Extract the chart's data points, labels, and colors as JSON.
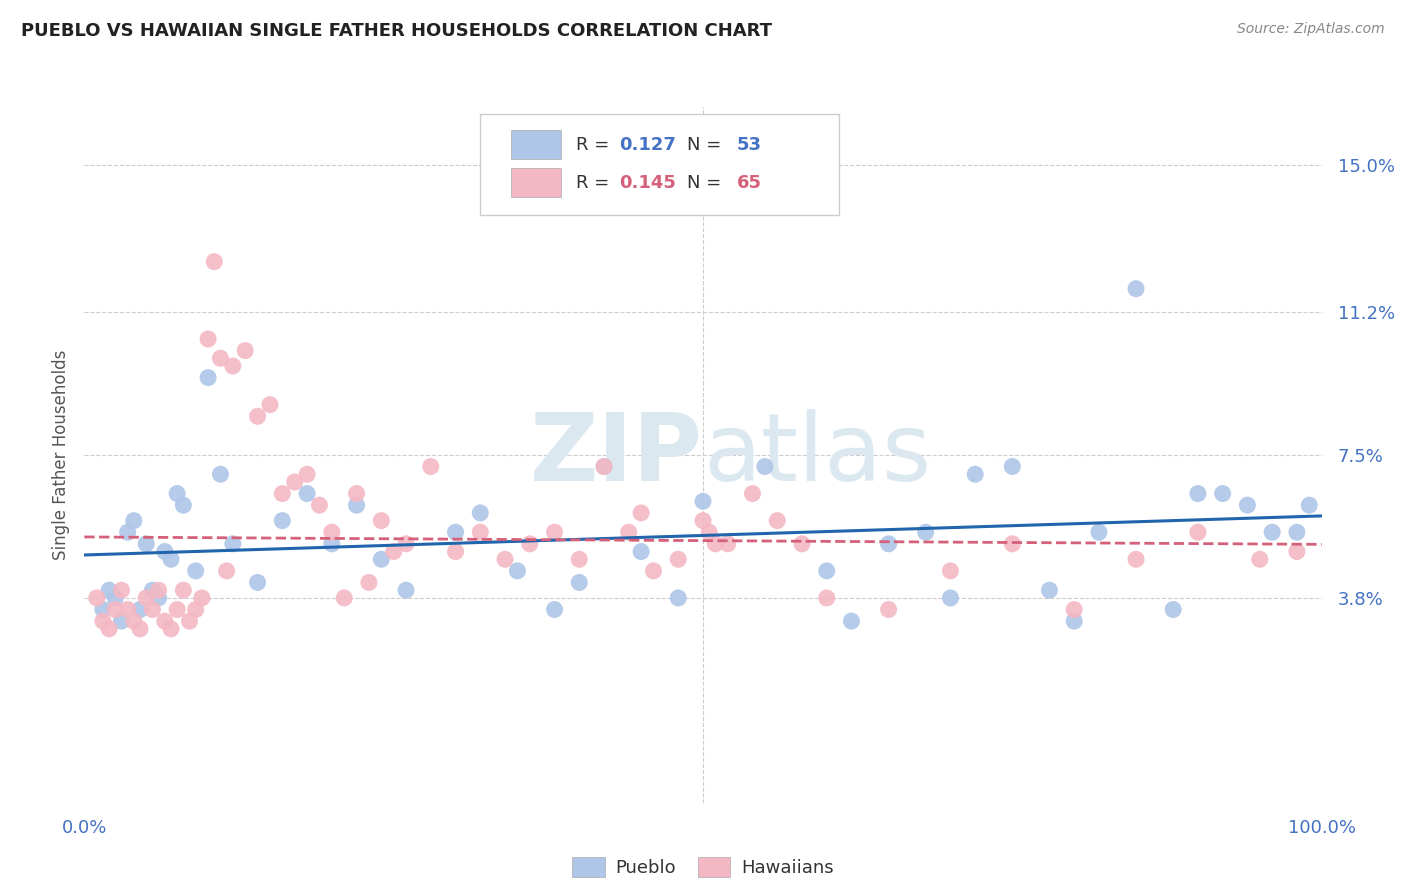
{
  "title": "PUEBLO VS HAWAIIAN SINGLE FATHER HOUSEHOLDS CORRELATION CHART",
  "source": "Source: ZipAtlas.com",
  "ylabel": "Single Father Households",
  "ytick_values": [
    3.8,
    7.5,
    11.2,
    15.0
  ],
  "ytick_labels": [
    "3.8%",
    "7.5%",
    "11.2%",
    "15.0%"
  ],
  "xlim": [
    0,
    100
  ],
  "ylim_min": -1.5,
  "ylim_max": 16.5,
  "legend_pueblo_R": "0.127",
  "legend_pueblo_N": "53",
  "legend_hawaiian_R": "0.145",
  "legend_hawaiian_N": "65",
  "pueblo_color": "#aec6e8",
  "hawaiian_color": "#f4b8c4",
  "pueblo_line_color": "#2166ac",
  "hawaiian_line_color": "#d4607a",
  "blue_text_color": "#4472c4",
  "pink_text_color": "#d4607a",
  "title_color": "#222222",
  "axis_tick_color": "#4472c4",
  "source_color": "#888888",
  "watermark_color": "#dce8f0",
  "pueblo_x": [
    1.5,
    2.0,
    2.5,
    3.0,
    3.5,
    4.0,
    4.5,
    5.0,
    5.5,
    6.0,
    6.5,
    7.0,
    7.5,
    8.0,
    9.0,
    10.0,
    11.0,
    12.0,
    14.0,
    16.0,
    18.0,
    20.0,
    22.0,
    24.0,
    26.0,
    30.0,
    32.0,
    35.0,
    38.0,
    40.0,
    42.0,
    45.0,
    50.0,
    60.0,
    62.0,
    65.0,
    70.0,
    75.0,
    78.0,
    80.0,
    82.0,
    85.0,
    88.0,
    90.0,
    92.0,
    94.0,
    96.0,
    98.0,
    99.0,
    68.0,
    72.0,
    55.0,
    48.0
  ],
  "pueblo_y": [
    3.5,
    4.0,
    3.8,
    3.2,
    5.5,
    5.8,
    3.5,
    5.2,
    4.0,
    3.8,
    5.0,
    4.8,
    6.5,
    6.2,
    4.5,
    9.5,
    7.0,
    5.2,
    4.2,
    5.8,
    6.5,
    5.2,
    6.2,
    4.8,
    4.0,
    5.5,
    6.0,
    4.5,
    3.5,
    4.2,
    7.2,
    5.0,
    6.3,
    4.5,
    3.2,
    5.2,
    3.8,
    7.2,
    4.0,
    3.2,
    5.5,
    11.8,
    3.5,
    6.5,
    6.5,
    6.2,
    5.5,
    5.5,
    6.2,
    5.5,
    7.0,
    7.2,
    3.8
  ],
  "hawaiian_x": [
    1.0,
    1.5,
    2.0,
    2.5,
    3.0,
    3.5,
    4.0,
    4.5,
    5.0,
    5.5,
    6.0,
    6.5,
    7.0,
    7.5,
    8.0,
    8.5,
    9.0,
    9.5,
    10.0,
    11.0,
    12.0,
    13.0,
    14.0,
    15.0,
    16.0,
    17.0,
    18.0,
    19.0,
    20.0,
    22.0,
    24.0,
    26.0,
    28.0,
    30.0,
    32.0,
    34.0,
    36.0,
    38.0,
    40.0,
    42.0,
    44.0,
    46.0,
    48.0,
    50.0,
    52.0,
    54.0,
    56.0,
    58.0,
    60.0,
    65.0,
    70.0,
    75.0,
    80.0,
    85.0,
    90.0,
    95.0,
    98.0,
    21.0,
    23.0,
    25.0,
    45.0,
    50.5,
    51.0,
    10.5,
    11.5
  ],
  "hawaiian_y": [
    3.8,
    3.2,
    3.0,
    3.5,
    4.0,
    3.5,
    3.2,
    3.0,
    3.8,
    3.5,
    4.0,
    3.2,
    3.0,
    3.5,
    4.0,
    3.2,
    3.5,
    3.8,
    10.5,
    10.0,
    9.8,
    10.2,
    8.5,
    8.8,
    6.5,
    6.8,
    7.0,
    6.2,
    5.5,
    6.5,
    5.8,
    5.2,
    7.2,
    5.0,
    5.5,
    4.8,
    5.2,
    5.5,
    4.8,
    7.2,
    5.5,
    4.5,
    4.8,
    5.8,
    5.2,
    6.5,
    5.8,
    5.2,
    3.8,
    3.5,
    4.5,
    5.2,
    3.5,
    4.8,
    5.5,
    4.8,
    5.0,
    3.8,
    4.2,
    5.0,
    6.0,
    5.5,
    5.2,
    12.5,
    4.5
  ]
}
